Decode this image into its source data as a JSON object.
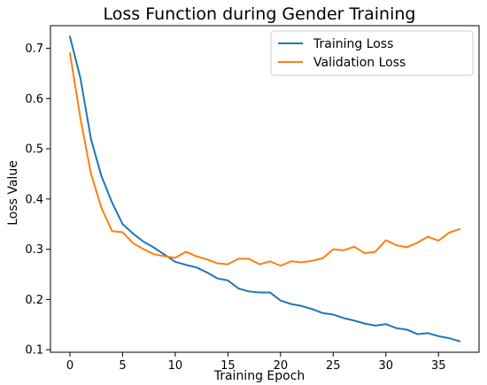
{
  "chart_data": {
    "type": "line",
    "title": "Loss Function during Gender Training",
    "xlabel": "Training Epoch",
    "ylabel": "Loss Value",
    "xlim": [
      -1.85,
      38.85
    ],
    "ylim": [
      0.095,
      0.745
    ],
    "xticks": [
      0,
      5,
      10,
      15,
      20,
      25,
      30,
      35
    ],
    "yticks": [
      0.1,
      0.2,
      0.3,
      0.4,
      0.5,
      0.6,
      0.7
    ],
    "grid": false,
    "legend_position": "top-right",
    "x": [
      0,
      1,
      2,
      3,
      4,
      5,
      6,
      7,
      8,
      9,
      10,
      11,
      12,
      13,
      14,
      15,
      16,
      17,
      18,
      19,
      20,
      21,
      22,
      23,
      24,
      25,
      26,
      27,
      28,
      29,
      30,
      31,
      32,
      33,
      34,
      35,
      36,
      37
    ],
    "series": [
      {
        "name": "Training Loss",
        "color": "#1f77b4",
        "values": [
          0.723,
          0.64,
          0.519,
          0.445,
          0.393,
          0.35,
          0.331,
          0.315,
          0.303,
          0.289,
          0.275,
          0.269,
          0.264,
          0.254,
          0.242,
          0.238,
          0.222,
          0.216,
          0.214,
          0.214,
          0.198,
          0.191,
          0.187,
          0.181,
          0.173,
          0.17,
          0.163,
          0.158,
          0.152,
          0.148,
          0.151,
          0.143,
          0.14,
          0.131,
          0.133,
          0.127,
          0.123,
          0.117
        ]
      },
      {
        "name": "Validation Loss",
        "color": "#ff7f0e",
        "values": [
          0.69,
          0.56,
          0.45,
          0.382,
          0.336,
          0.334,
          0.312,
          0.3,
          0.29,
          0.286,
          0.283,
          0.295,
          0.286,
          0.28,
          0.272,
          0.27,
          0.281,
          0.281,
          0.27,
          0.276,
          0.267,
          0.276,
          0.274,
          0.277,
          0.282,
          0.3,
          0.298,
          0.305,
          0.292,
          0.295,
          0.318,
          0.308,
          0.304,
          0.313,
          0.325,
          0.317,
          0.333,
          0.34
        ]
      }
    ]
  }
}
